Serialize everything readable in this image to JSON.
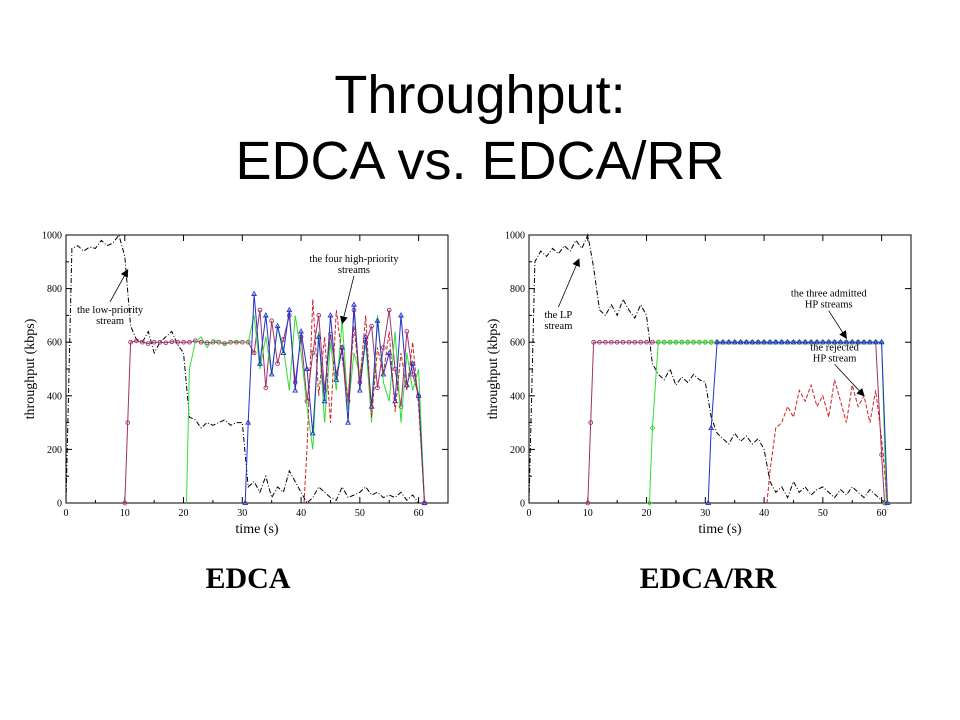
{
  "slide": {
    "title_line1": "Throughput:",
    "title_line2": "EDCA vs. EDCA/RR"
  },
  "captions": {
    "left": "EDCA",
    "right": "EDCA/RR"
  },
  "colors": {
    "lp": "#000000",
    "hp1": "#a0306a",
    "hp2": "#33dd33",
    "hp3": "#2233cc",
    "hp4": "#cc2222"
  },
  "chart_data": [
    {
      "type": "line",
      "title": "",
      "xlabel": "time (s)",
      "ylabel": "throughput (kbps)",
      "xlim": [
        0,
        65
      ],
      "ylim": [
        0,
        1000
      ],
      "xticks": [
        0,
        10,
        20,
        30,
        40,
        50,
        60
      ],
      "yticks": [
        0,
        200,
        400,
        600,
        800,
        1000
      ],
      "grid": false,
      "annotations": [
        {
          "text_lines": [
            "the low-priority",
            "stream"
          ],
          "x": 7.5,
          "y": 680,
          "arrow_to": [
            10.5,
            870
          ]
        },
        {
          "text_lines": [
            "the four high-priority",
            "streams"
          ],
          "x": 49,
          "y": 870,
          "arrow_to": [
            47,
            670
          ]
        }
      ],
      "series": [
        {
          "color_key": "lp",
          "style": "dash-dot",
          "marker": "none",
          "x": [
            0,
            1,
            2,
            3,
            4,
            5,
            6,
            7,
            8,
            9,
            10,
            11,
            12,
            13,
            14,
            15,
            16,
            17,
            18,
            19,
            20,
            21,
            22,
            23,
            24,
            25,
            26,
            27,
            28,
            29,
            30,
            31,
            32,
            33,
            34,
            35,
            36,
            37,
            38,
            39,
            40,
            41,
            42,
            43,
            44,
            45,
            46,
            47,
            48,
            49,
            50,
            51,
            52,
            53,
            54,
            55,
            56,
            57,
            58,
            59,
            60,
            61
          ],
          "y": [
            0,
            950,
            960,
            940,
            955,
            950,
            980,
            960,
            970,
            1000,
            920,
            660,
            610,
            600,
            640,
            560,
            600,
            620,
            640,
            590,
            560,
            320,
            310,
            280,
            300,
            290,
            300,
            310,
            290,
            300,
            300,
            60,
            80,
            40,
            100,
            20,
            60,
            40,
            120,
            80,
            40,
            0,
            20,
            60,
            40,
            20,
            10,
            60,
            20,
            30,
            40,
            60,
            30,
            40,
            20,
            30,
            20,
            40,
            10,
            30,
            0,
            0
          ]
        },
        {
          "color_key": "hp1",
          "style": "solid",
          "marker": "circle",
          "x": [
            10,
            10.5,
            11,
            12,
            13,
            14,
            15,
            16,
            17,
            18,
            19,
            20,
            21,
            22,
            23,
            24,
            25,
            26,
            27,
            28,
            29,
            30,
            31,
            32,
            33,
            34,
            35,
            36,
            37,
            38,
            39,
            40,
            41,
            42,
            43,
            44,
            45,
            46,
            47,
            48,
            49,
            50,
            51,
            52,
            53,
            54,
            55,
            56,
            57,
            58,
            59,
            60,
            61
          ],
          "y": [
            0,
            300,
            600,
            605,
            600,
            595,
            600,
            600,
            598,
            602,
            600,
            600,
            600,
            605,
            600,
            598,
            600,
            600,
            595,
            600,
            600,
            600,
            600,
            560,
            720,
            430,
            680,
            520,
            610,
            700,
            450,
            620,
            380,
            560,
            700,
            420,
            630,
            480,
            580,
            380,
            720,
            450,
            600,
            660,
            430,
            580,
            720,
            500,
            360,
            640,
            480,
            400,
            0
          ]
        },
        {
          "color_key": "hp2",
          "style": "solid",
          "marker": "none",
          "x": [
            20.5,
            21,
            22,
            23,
            24,
            25,
            26,
            27,
            28,
            29,
            30,
            31,
            32,
            33,
            34,
            35,
            36,
            37,
            38,
            39,
            40,
            41,
            42,
            43,
            44,
            45,
            46,
            47,
            48,
            49,
            50,
            51,
            52,
            53,
            54,
            55,
            56,
            57,
            58,
            59,
            60,
            61
          ],
          "y": [
            0,
            500,
            600,
            620,
            580,
            610,
            600,
            590,
            600,
            605,
            600,
            600,
            700,
            500,
            620,
            480,
            660,
            580,
            420,
            700,
            560,
            360,
            200,
            640,
            300,
            600,
            420,
            680,
            350,
            560,
            480,
            600,
            300,
            700,
            450,
            380,
            640,
            300,
            560,
            420,
            500,
            0
          ]
        },
        {
          "color_key": "hp3",
          "style": "solid",
          "marker": "triangle",
          "x": [
            30.5,
            31,
            32,
            33,
            34,
            35,
            36,
            37,
            38,
            39,
            40,
            41,
            42,
            43,
            44,
            45,
            46,
            47,
            48,
            49,
            50,
            51,
            52,
            53,
            54,
            55,
            56,
            57,
            58,
            59,
            60,
            61
          ],
          "y": [
            0,
            300,
            780,
            520,
            700,
            480,
            660,
            560,
            720,
            420,
            640,
            500,
            260,
            620,
            380,
            700,
            460,
            580,
            300,
            740,
            420,
            620,
            360,
            680,
            480,
            560,
            380,
            700,
            440,
            520,
            400,
            0
          ]
        },
        {
          "color_key": "hp4",
          "style": "dashed",
          "marker": "none",
          "x": [
            40.5,
            41,
            42,
            43,
            44,
            45,
            46,
            47,
            48,
            49,
            50,
            51,
            52,
            53,
            54,
            55,
            56,
            57,
            58,
            59,
            60,
            61
          ],
          "y": [
            0,
            200,
            760,
            400,
            620,
            300,
            720,
            540,
            380,
            660,
            450,
            700,
            320,
            580,
            480,
            640,
            340,
            560,
            420,
            600,
            360,
            0
          ]
        }
      ]
    },
    {
      "type": "line",
      "title": "",
      "xlabel": "time (s)",
      "ylabel": "throughput (kbps)",
      "xlim": [
        0,
        65
      ],
      "ylim": [
        0,
        1000
      ],
      "xticks": [
        0,
        10,
        20,
        30,
        40,
        50,
        60
      ],
      "yticks": [
        0,
        200,
        400,
        600,
        800,
        1000
      ],
      "grid": false,
      "annotations": [
        {
          "text_lines": [
            "the LP",
            "stream"
          ],
          "x": 5,
          "y": 660,
          "arrow_to": [
            8.5,
            910
          ]
        },
        {
          "text_lines": [
            "the three admitted",
            "HP streams"
          ],
          "x": 51,
          "y": 740,
          "arrow_to": [
            54,
            615
          ]
        },
        {
          "text_lines": [
            "the rejected",
            "HP stream"
          ],
          "x": 52,
          "y": 540,
          "arrow_to": [
            57,
            400
          ]
        }
      ],
      "series": [
        {
          "color_key": "lp",
          "style": "dash-dot",
          "marker": "none",
          "x": [
            0,
            1,
            2,
            3,
            4,
            5,
            6,
            7,
            8,
            9,
            10,
            11,
            12,
            13,
            14,
            15,
            16,
            17,
            18,
            19,
            20,
            21,
            22,
            23,
            24,
            25,
            26,
            27,
            28,
            29,
            30,
            31,
            32,
            33,
            34,
            35,
            36,
            37,
            38,
            39,
            40,
            41,
            42,
            43,
            44,
            45,
            46,
            47,
            48,
            49,
            50,
            51,
            52,
            53,
            54,
            55,
            56,
            57,
            58,
            59,
            60,
            61
          ],
          "y": [
            0,
            900,
            940,
            920,
            950,
            930,
            960,
            940,
            980,
            950,
            1000,
            880,
            720,
            700,
            740,
            700,
            760,
            720,
            690,
            740,
            700,
            520,
            480,
            460,
            500,
            440,
            470,
            450,
            480,
            460,
            450,
            320,
            260,
            240,
            220,
            260,
            230,
            250,
            220,
            240,
            200,
            80,
            40,
            60,
            20,
            80,
            40,
            60,
            30,
            50,
            60,
            40,
            20,
            50,
            30,
            60,
            40,
            20,
            50,
            30,
            10,
            0
          ]
        },
        {
          "color_key": "hp1",
          "style": "solid",
          "marker": "circle",
          "x": [
            10,
            10.5,
            11,
            12,
            13,
            14,
            15,
            16,
            17,
            18,
            19,
            20,
            21,
            22,
            23,
            24,
            25,
            26,
            27,
            28,
            29,
            30,
            31,
            32,
            33,
            34,
            35,
            36,
            37,
            38,
            39,
            40,
            41,
            42,
            43,
            44,
            45,
            46,
            47,
            48,
            49,
            50,
            51,
            52,
            53,
            54,
            55,
            56,
            57,
            58,
            59,
            60,
            60.5
          ],
          "y": [
            0,
            300,
            600,
            600,
            600,
            600,
            600,
            600,
            600,
            600,
            600,
            600,
            600,
            600,
            600,
            600,
            600,
            600,
            600,
            600,
            600,
            600,
            600,
            600,
            600,
            600,
            600,
            600,
            600,
            600,
            600,
            600,
            600,
            600,
            600,
            600,
            600,
            600,
            600,
            600,
            600,
            600,
            600,
            600,
            600,
            600,
            600,
            600,
            600,
            600,
            600,
            180,
            0
          ]
        },
        {
          "color_key": "hp2",
          "style": "solid",
          "marker": "diamond",
          "x": [
            20.5,
            21,
            22,
            23,
            24,
            25,
            26,
            27,
            28,
            29,
            30,
            31,
            32,
            33,
            34,
            35,
            36,
            37,
            38,
            39,
            40,
            41,
            42,
            43,
            44,
            45,
            46,
            47,
            48,
            49,
            50,
            51,
            52,
            53,
            54,
            55,
            56,
            57,
            58,
            59,
            60,
            60.8
          ],
          "y": [
            0,
            280,
            600,
            600,
            600,
            600,
            600,
            600,
            600,
            600,
            600,
            600,
            600,
            600,
            600,
            600,
            600,
            600,
            600,
            600,
            600,
            600,
            600,
            600,
            600,
            600,
            600,
            600,
            600,
            600,
            600,
            600,
            600,
            600,
            600,
            600,
            600,
            600,
            600,
            600,
            600,
            0
          ]
        },
        {
          "color_key": "hp3",
          "style": "solid",
          "marker": "triangle",
          "x": [
            30.5,
            31,
            32,
            33,
            34,
            35,
            36,
            37,
            38,
            39,
            40,
            41,
            42,
            43,
            44,
            45,
            46,
            47,
            48,
            49,
            50,
            51,
            52,
            53,
            54,
            55,
            56,
            57,
            58,
            59,
            60,
            61
          ],
          "y": [
            0,
            280,
            600,
            600,
            600,
            600,
            600,
            600,
            600,
            600,
            600,
            600,
            600,
            600,
            600,
            600,
            600,
            600,
            600,
            600,
            600,
            600,
            600,
            600,
            600,
            600,
            600,
            600,
            600,
            600,
            600,
            0
          ]
        },
        {
          "color_key": "hp4",
          "style": "dashed",
          "marker": "none",
          "x": [
            40.5,
            41,
            42,
            43,
            44,
            45,
            46,
            47,
            48,
            49,
            50,
            51,
            52,
            53,
            54,
            55,
            56,
            57,
            58,
            59,
            60,
            61
          ],
          "y": [
            0,
            120,
            280,
            300,
            360,
            320,
            420,
            380,
            440,
            360,
            400,
            320,
            460,
            380,
            300,
            440,
            360,
            400,
            300,
            420,
            240,
            0
          ]
        }
      ]
    }
  ]
}
